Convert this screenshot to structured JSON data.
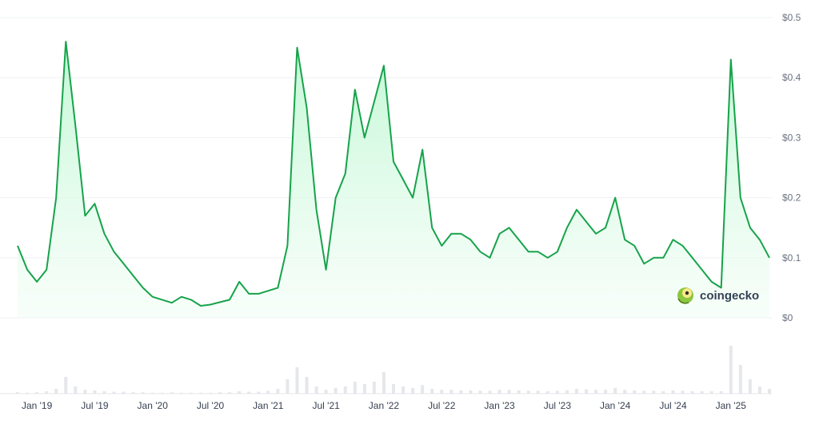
{
  "chart_data": {
    "type": "area",
    "title": "",
    "xlabel": "",
    "ylabel": "",
    "ylim": [
      0,
      0.5
    ],
    "y_ticks": [
      "$0",
      "$0.1",
      "$0.2",
      "$0.3",
      "$0.4",
      "$0.5"
    ],
    "y_tick_values": [
      0,
      0.1,
      0.2,
      0.3,
      0.4,
      0.5
    ],
    "x_ticks": [
      "Jan '19",
      "Jul '19",
      "Jan '20",
      "Jul '20",
      "Jan '21",
      "Jul '21",
      "Jan '22",
      "Jul '22",
      "Jan '23",
      "Jul '23",
      "Jan '24",
      "Jul '24",
      "Jan '25"
    ],
    "grid": "horizontal",
    "line_color": "#16a34a",
    "fill_color": "#dcfce7",
    "volume_color": "#e5e7eb",
    "x_start": "2018-11",
    "series": [
      {
        "x": [
          "2018-11",
          "2018-12",
          "2019-01",
          "2019-02",
          "2019-03",
          "2019-04",
          "2019-05",
          "2019-06",
          "2019-07",
          "2019-08",
          "2019-09",
          "2019-10",
          "2019-11",
          "2019-12",
          "2020-01",
          "2020-02",
          "2020-03",
          "2020-04",
          "2020-05",
          "2020-06",
          "2020-07",
          "2020-08",
          "2020-09",
          "2020-10",
          "2020-11",
          "2020-12",
          "2021-01",
          "2021-02",
          "2021-03",
          "2021-04",
          "2021-05",
          "2021-06",
          "2021-07",
          "2021-08",
          "2021-09",
          "2021-10",
          "2021-11",
          "2021-12",
          "2022-01",
          "2022-02",
          "2022-03",
          "2022-04",
          "2022-05",
          "2022-06",
          "2022-07",
          "2022-08",
          "2022-09",
          "2022-10",
          "2022-11",
          "2022-12",
          "2023-01",
          "2023-02",
          "2023-03",
          "2023-04",
          "2023-05",
          "2023-06",
          "2023-07",
          "2023-08",
          "2023-09",
          "2023-10",
          "2023-11",
          "2023-12",
          "2024-01",
          "2024-02",
          "2024-03",
          "2024-04",
          "2024-05",
          "2024-06",
          "2024-07",
          "2024-08",
          "2024-09",
          "2024-10",
          "2024-11",
          "2024-12",
          "2025-01",
          "2025-02",
          "2025-03",
          "2025-04",
          "2025-05"
        ],
        "values": [
          0.12,
          0.08,
          0.06,
          0.08,
          0.2,
          0.46,
          0.32,
          0.17,
          0.19,
          0.14,
          0.11,
          0.09,
          0.07,
          0.05,
          0.035,
          0.03,
          0.025,
          0.035,
          0.03,
          0.02,
          0.022,
          0.026,
          0.03,
          0.06,
          0.04,
          0.04,
          0.045,
          0.05,
          0.12,
          0.45,
          0.35,
          0.18,
          0.08,
          0.2,
          0.24,
          0.38,
          0.3,
          0.36,
          0.42,
          0.26,
          0.23,
          0.2,
          0.28,
          0.15,
          0.12,
          0.14,
          0.14,
          0.13,
          0.11,
          0.1,
          0.14,
          0.15,
          0.13,
          0.11,
          0.11,
          0.1,
          0.11,
          0.15,
          0.18,
          0.16,
          0.14,
          0.15,
          0.2,
          0.13,
          0.12,
          0.09,
          0.1,
          0.1,
          0.13,
          0.12,
          0.1,
          0.08,
          0.06,
          0.05,
          0.43,
          0.2,
          0.15,
          0.13,
          0.1
        ]
      }
    ],
    "volume": [
      0.03,
      0.02,
      0.03,
      0.05,
      0.1,
      0.35,
      0.15,
      0.08,
      0.07,
      0.05,
      0.04,
      0.04,
      0.03,
      0.03,
      0.02,
      0.02,
      0.03,
      0.02,
      0.02,
      0.02,
      0.02,
      0.03,
      0.03,
      0.05,
      0.04,
      0.04,
      0.06,
      0.1,
      0.3,
      0.55,
      0.35,
      0.15,
      0.08,
      0.12,
      0.15,
      0.25,
      0.2,
      0.25,
      0.45,
      0.2,
      0.15,
      0.12,
      0.18,
      0.1,
      0.08,
      0.08,
      0.07,
      0.07,
      0.06,
      0.06,
      0.08,
      0.08,
      0.07,
      0.06,
      0.06,
      0.05,
      0.06,
      0.07,
      0.1,
      0.09,
      0.08,
      0.08,
      0.12,
      0.08,
      0.07,
      0.06,
      0.06,
      0.05,
      0.07,
      0.06,
      0.05,
      0.05,
      0.05,
      0.05,
      1.0,
      0.6,
      0.3,
      0.15,
      0.1
    ]
  },
  "watermark": {
    "text": "coingecko",
    "icon": "gecko-logo-icon"
  }
}
